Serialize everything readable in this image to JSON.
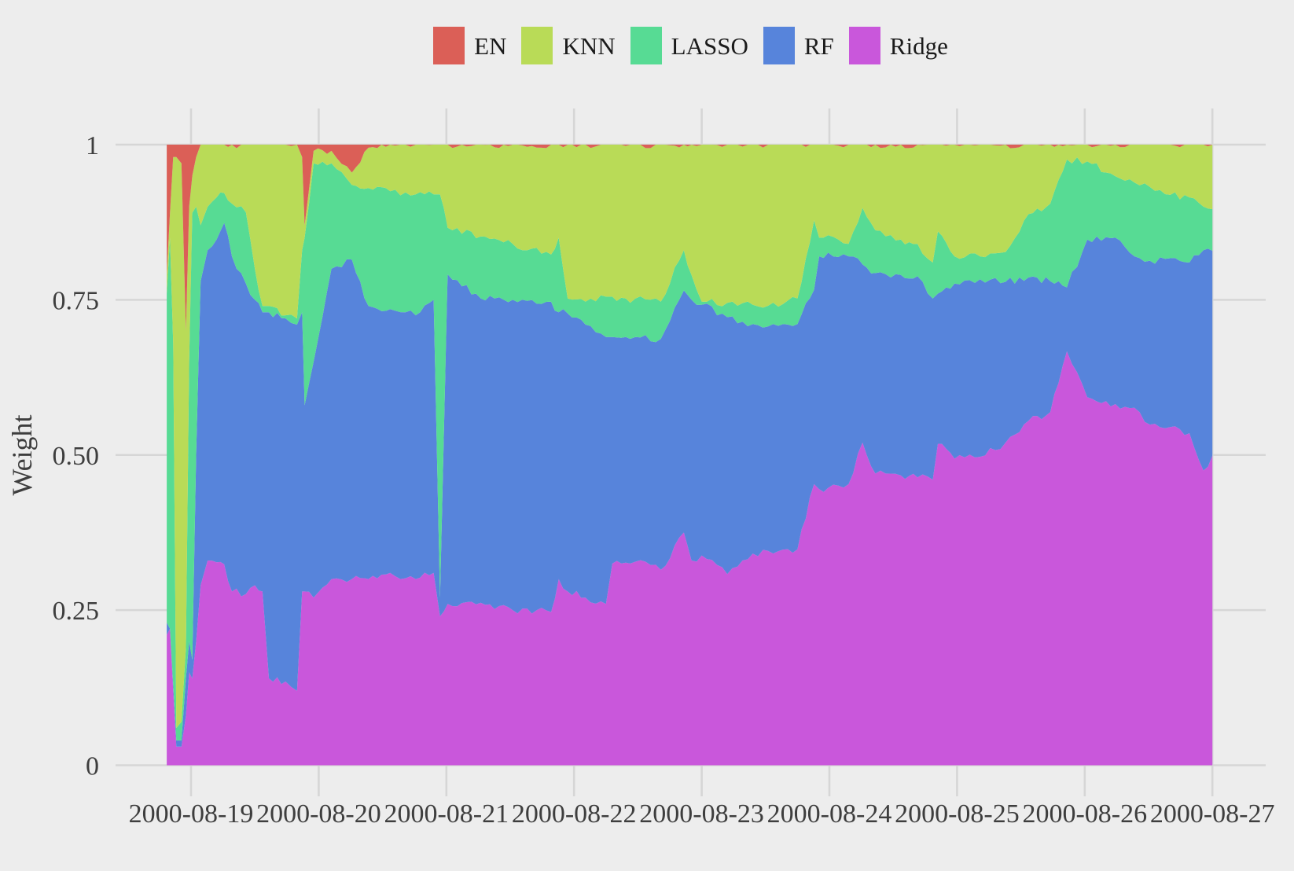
{
  "figure": {
    "background": "#ededed",
    "grid_color": "#d6d6d6",
    "tick_color": "#cccccc",
    "text_color": "#3e3e3e",
    "legend_text_color": "#1b1b1b"
  },
  "legend": {
    "position": "top-center",
    "items": [
      {
        "label": "EN",
        "color": "#db5f57"
      },
      {
        "label": "KNN",
        "color": "#b9db57"
      },
      {
        "label": "LASSO",
        "color": "#57db94"
      },
      {
        "label": "RF",
        "color": "#5784db"
      },
      {
        "label": "Ridge",
        "color": "#c957db"
      }
    ]
  },
  "axes": {
    "ylabel": "Weight",
    "xlabel": "",
    "y_tick_labels": [
      "0",
      "0.25",
      "0.50",
      "0.75",
      "1"
    ],
    "x_tick_labels": [
      "2000-08-19",
      "2000-08-20",
      "2000-08-21",
      "2000-08-22",
      "2000-08-23",
      "2000-08-24",
      "2000-08-25",
      "2000-08-26",
      "2000-08-27"
    ]
  },
  "chart_data": {
    "type": "area",
    "stacked": true,
    "normalized": true,
    "title": "",
    "xlabel": "",
    "ylabel": "Weight",
    "ylim": [
      0,
      1
    ],
    "grid": true,
    "legend_position": "top",
    "x_unit": "days since 2000-08-19 00:00",
    "xlim_days": [
      -0.19,
      8.0
    ],
    "x_tick_days": [
      0,
      1,
      2,
      3,
      4,
      5,
      6,
      7,
      8
    ],
    "x_tick_labels": [
      "2000-08-19",
      "2000-08-20",
      "2000-08-21",
      "2000-08-22",
      "2000-08-23",
      "2000-08-24",
      "2000-08-25",
      "2000-08-26",
      "2000-08-27"
    ],
    "y_tick_values": [
      0,
      0.25,
      0.5,
      0.75,
      1
    ],
    "y_tick_labels": [
      "0",
      "0.25",
      "0.50",
      "0.75",
      "1"
    ],
    "stack_order_bottom_to_top": [
      "Ridge",
      "RF",
      "LASSO",
      "KNN",
      "EN"
    ],
    "x": [
      -0.19,
      -0.165,
      -0.14,
      -0.115,
      -0.075,
      -0.04,
      -0.015,
      0.01,
      0.04,
      0.075,
      0.13,
      0.2,
      0.26,
      0.32,
      0.43,
      0.5,
      0.56,
      0.61,
      0.74,
      0.83,
      0.87,
      0.89,
      0.96,
      1.1,
      1.26,
      1.39,
      1.56,
      1.76,
      1.9,
      1.95,
      2.01,
      2.27,
      2.52,
      2.82,
      2.88,
      2.95,
      3.09,
      3.25,
      3.3,
      3.44,
      3.48,
      3.68,
      3.86,
      3.92,
      4.0,
      4.2,
      4.4,
      4.6,
      4.75,
      4.88,
      4.92,
      4.99,
      5.15,
      5.26,
      5.36,
      5.56,
      5.69,
      5.81,
      5.85,
      5.98,
      6.18,
      6.38,
      6.56,
      6.73,
      6.86,
      7.02,
      7.24,
      7.39,
      7.51,
      7.67,
      7.82,
      7.93,
      8.0
    ],
    "series": [
      {
        "name": "EN",
        "color": "#db5f57",
        "values": [
          0.21,
          0.11,
          0.02,
          0.02,
          0.03,
          0.3,
          0.1,
          0.05,
          0.02,
          0,
          0,
          0,
          0,
          0,
          0,
          0,
          0,
          0,
          0,
          0,
          0.02,
          0.13,
          0.01,
          0.01,
          0.045,
          0.005,
          0,
          0,
          0,
          0,
          0,
          0,
          0,
          0,
          0,
          0,
          0,
          0,
          0,
          0,
          0,
          0,
          0,
          0,
          0,
          0,
          0,
          0,
          0,
          0,
          0,
          0,
          0,
          0,
          0,
          0,
          0,
          0,
          0,
          0,
          0,
          0,
          0,
          0,
          0,
          0,
          0,
          0,
          0,
          0,
          0,
          0,
          0
        ]
      },
      {
        "name": "KNN",
        "color": "#b9db57",
        "values": [
          0.03,
          0.04,
          0.3,
          0.92,
          0.9,
          0.51,
          0.25,
          0.06,
          0.08,
          0.13,
          0.1,
          0.085,
          0.078,
          0.095,
          0.109,
          0.2,
          0.26,
          0.26,
          0.275,
          0.28,
          0.15,
          0.02,
          0.02,
          0.02,
          0.02,
          0.065,
          0.075,
          0.08,
          0.08,
          0.08,
          0.134,
          0.148,
          0.16,
          0.177,
          0.15,
          0.248,
          0.253,
          0.245,
          0.245,
          0.255,
          0.248,
          0.253,
          0.17,
          0.21,
          0.253,
          0.255,
          0.258,
          0.261,
          0.248,
          0.122,
          0.15,
          0.146,
          0.16,
          0.102,
          0.138,
          0.153,
          0.16,
          0.19,
          0.14,
          0.18,
          0.18,
          0.173,
          0.112,
          0.095,
          0.024,
          0.027,
          0.051,
          0.061,
          0.068,
          0.081,
          0.085,
          0.1,
          0.104
        ]
      },
      {
        "name": "LASSO",
        "color": "#57db94",
        "values": [
          0.53,
          0.63,
          0.55,
          0.02,
          0.03,
          0.05,
          0.45,
          0.72,
          0.4,
          0.09,
          0.07,
          0.068,
          0.048,
          0.085,
          0.115,
          0.05,
          0.01,
          0.01,
          0.005,
          0.01,
          0.1,
          0.27,
          0.32,
          0.17,
          0.12,
          0.19,
          0.19,
          0.195,
          0.17,
          0.65,
          0.075,
          0.1,
          0.09,
          0.076,
          0.12,
          0.024,
          0.037,
          0.065,
          0.065,
          0.058,
          0.062,
          0.06,
          0.065,
          0.04,
          0.005,
          0.023,
          0.031,
          0.031,
          0.041,
          0.112,
          0.03,
          0.028,
          0.02,
          0.091,
          0.069,
          0.057,
          0.052,
          0.058,
          0.1,
          0.044,
          0.037,
          0.048,
          0.102,
          0.125,
          0.206,
          0.126,
          0.099,
          0.119,
          0.119,
          0.102,
          0.105,
          0.07,
          0.067
        ]
      },
      {
        "name": "RF",
        "color": "#5784db",
        "values": [
          0.02,
          0,
          0.01,
          0.01,
          0.01,
          0.06,
          0.05,
          0.03,
          0.3,
          0.49,
          0.5,
          0.52,
          0.55,
          0.54,
          0.5,
          0.46,
          0.45,
          0.59,
          0.585,
          0.59,
          0.45,
          0.3,
          0.38,
          0.5,
          0.515,
          0.44,
          0.425,
          0.425,
          0.44,
          0.03,
          0.531,
          0.49,
          0.5,
          0.5,
          0.43,
          0.448,
          0.44,
          0.43,
          0.365,
          0.362,
          0.362,
          0.372,
          0.39,
          0.42,
          0.404,
          0.414,
          0.37,
          0.363,
          0.363,
          0.313,
          0.375,
          0.379,
          0.367,
          0.287,
          0.323,
          0.323,
          0.324,
          0.292,
          0.242,
          0.282,
          0.286,
          0.259,
          0.231,
          0.211,
          0.103,
          0.254,
          0.268,
          0.244,
          0.264,
          0.272,
          0.275,
          0.355,
          0.33
        ]
      },
      {
        "name": "Ridge",
        "color": "#c957db",
        "values": [
          0.21,
          0.22,
          0.12,
          0.03,
          0.03,
          0.08,
          0.15,
          0.14,
          0.2,
          0.29,
          0.33,
          0.327,
          0.324,
          0.28,
          0.276,
          0.29,
          0.28,
          0.14,
          0.135,
          0.12,
          0.28,
          0.28,
          0.27,
          0.3,
          0.3,
          0.3,
          0.31,
          0.3,
          0.31,
          0.24,
          0.26,
          0.262,
          0.25,
          0.247,
          0.3,
          0.28,
          0.27,
          0.26,
          0.325,
          0.325,
          0.328,
          0.315,
          0.375,
          0.33,
          0.338,
          0.308,
          0.341,
          0.345,
          0.348,
          0.453,
          0.445,
          0.447,
          0.453,
          0.52,
          0.47,
          0.467,
          0.464,
          0.46,
          0.518,
          0.494,
          0.497,
          0.52,
          0.555,
          0.569,
          0.667,
          0.593,
          0.582,
          0.576,
          0.549,
          0.545,
          0.535,
          0.475,
          0.499
        ]
      }
    ]
  }
}
